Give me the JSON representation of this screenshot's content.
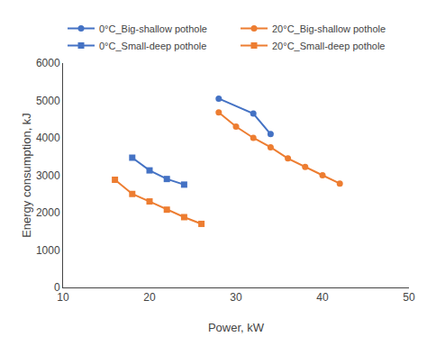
{
  "chart_data": {
    "type": "line",
    "xlabel": "Power, kW",
    "ylabel": "Energy consumption, kJ",
    "xlim": [
      10,
      50
    ],
    "ylim": [
      0,
      6000
    ],
    "xticks": [
      10,
      20,
      30,
      40,
      50
    ],
    "yticks": [
      0,
      1000,
      2000,
      3000,
      4000,
      5000,
      6000
    ],
    "grid": false,
    "legend": "upper left",
    "series": [
      {
        "name": "0°C_Big-shallow pothole",
        "color": "#4472C4",
        "marker": "circle",
        "x": [
          28,
          32,
          34
        ],
        "values": [
          5050,
          4650,
          4100
        ]
      },
      {
        "name": "20°C_Big-shallow pothole",
        "color": "#ED7D31",
        "marker": "circle",
        "x": [
          28,
          30,
          32,
          34,
          36,
          38,
          40,
          42
        ],
        "values": [
          4680,
          4300,
          4000,
          3750,
          3450,
          3220,
          3000,
          2780
        ]
      },
      {
        "name": "0°C_Small-deep pothole",
        "color": "#4472C4",
        "marker": "square",
        "x": [
          18,
          20,
          22,
          24
        ],
        "values": [
          3470,
          3130,
          2900,
          2750
        ]
      },
      {
        "name": "20°C_Small-deep pothole",
        "color": "#ED7D31",
        "marker": "square",
        "x": [
          16,
          18,
          20,
          22,
          24,
          26
        ],
        "values": [
          2880,
          2500,
          2300,
          2080,
          1880,
          1700
        ]
      }
    ]
  }
}
